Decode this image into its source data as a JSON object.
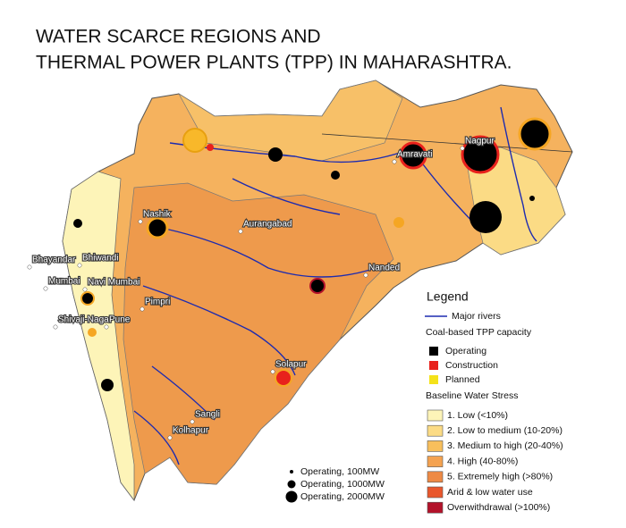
{
  "title": [
    "WATER SCARCE REGIONS AND",
    "THERMAL POWER PLANTS  (TPP) IN MAHARASHTRA."
  ],
  "cities": [
    "Nagpur",
    "Amravati",
    "Nashik",
    "Aurangabad",
    "Nanded",
    "Bhayandar",
    "Bhiwandi",
    "Mumbai",
    "Navi Mumbai",
    "Pimpri",
    "Shivaji-Nagar",
    "Pune",
    "Solapur",
    "Sangli",
    "Kolhapur"
  ],
  "legend": {
    "title": "Legend",
    "rivers": "Major rivers",
    "tpp_title": "Coal-based TPP capacity",
    "tpp": [
      {
        "label": "Operating",
        "color": "#000000"
      },
      {
        "label": "Construction",
        "color": "#e8211c"
      },
      {
        "label": "Planned",
        "color": "#f4e21a"
      }
    ],
    "stress_title": "Baseline Water Stress",
    "stress": [
      {
        "label": "1. Low (<10%)",
        "color": "#fdf4b8"
      },
      {
        "label": "2. Low to medium (10-20%)",
        "color": "#fbdb85"
      },
      {
        "label": "3. Medium to high (20-40%)",
        "color": "#f8bf5c"
      },
      {
        "label": "4. High (40-80%)",
        "color": "#f4a250"
      },
      {
        "label": "5. Extremely high (>80%)",
        "color": "#ee8a45"
      },
      {
        "label": "Arid & low water use",
        "color": "#e9572c"
      },
      {
        "label": "Overwithdrawal (>100%)",
        "color": "#b3122a"
      }
    ]
  },
  "size_legend": [
    "Operating, 100MW",
    "Operating, 1000MW",
    "Operating, 2000MW"
  ]
}
